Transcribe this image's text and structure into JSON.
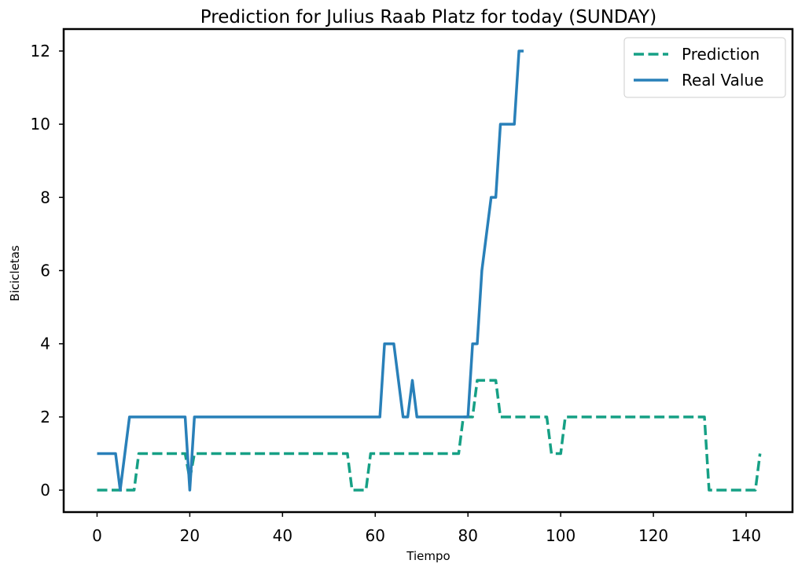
{
  "chart_data": {
    "type": "line",
    "title": "Prediction for Julius Raab Platz for today (SUNDAY)",
    "xlabel": "Tiempo",
    "ylabel": "Bicicletas",
    "xlim": [
      -7.2,
      150
    ],
    "ylim": [
      -0.6,
      12.6
    ],
    "xticks": [
      0,
      20,
      40,
      60,
      80,
      100,
      120,
      140
    ],
    "yticks": [
      0,
      2,
      4,
      6,
      8,
      10,
      12
    ],
    "grid": false,
    "legend_position": "top-right",
    "series": [
      {
        "name": "Prediction",
        "color": "#16a085",
        "style": "dashed",
        "points": [
          [
            0,
            0
          ],
          [
            8,
            0
          ],
          [
            9,
            1
          ],
          [
            19,
            1
          ],
          [
            20,
            0.3
          ],
          [
            21,
            1
          ],
          [
            54,
            1
          ],
          [
            55,
            0
          ],
          [
            58,
            0
          ],
          [
            59,
            1
          ],
          [
            78,
            1
          ],
          [
            79,
            2
          ],
          [
            81,
            2
          ],
          [
            82,
            3
          ],
          [
            86,
            3
          ],
          [
            87,
            2
          ],
          [
            97,
            2
          ],
          [
            98,
            1
          ],
          [
            100,
            1
          ],
          [
            101,
            2
          ],
          [
            131,
            2
          ],
          [
            132,
            0
          ],
          [
            142,
            0
          ],
          [
            143,
            1
          ]
        ]
      },
      {
        "name": "Real Value",
        "color": "#2980b9",
        "style": "solid",
        "points": [
          [
            0,
            1
          ],
          [
            4,
            1
          ],
          [
            5,
            0
          ],
          [
            6,
            1
          ],
          [
            7,
            2
          ],
          [
            19,
            2
          ],
          [
            20,
            0
          ],
          [
            21,
            2
          ],
          [
            61,
            2
          ],
          [
            62,
            4
          ],
          [
            64,
            4
          ],
          [
            66,
            2
          ],
          [
            67,
            2
          ],
          [
            68,
            3
          ],
          [
            69,
            2
          ],
          [
            80,
            2
          ],
          [
            81,
            4
          ],
          [
            82,
            4
          ],
          [
            83,
            6
          ],
          [
            85,
            8
          ],
          [
            86,
            8
          ],
          [
            87,
            10
          ],
          [
            90,
            10
          ],
          [
            91,
            12
          ],
          [
            92,
            12
          ]
        ]
      }
    ]
  }
}
